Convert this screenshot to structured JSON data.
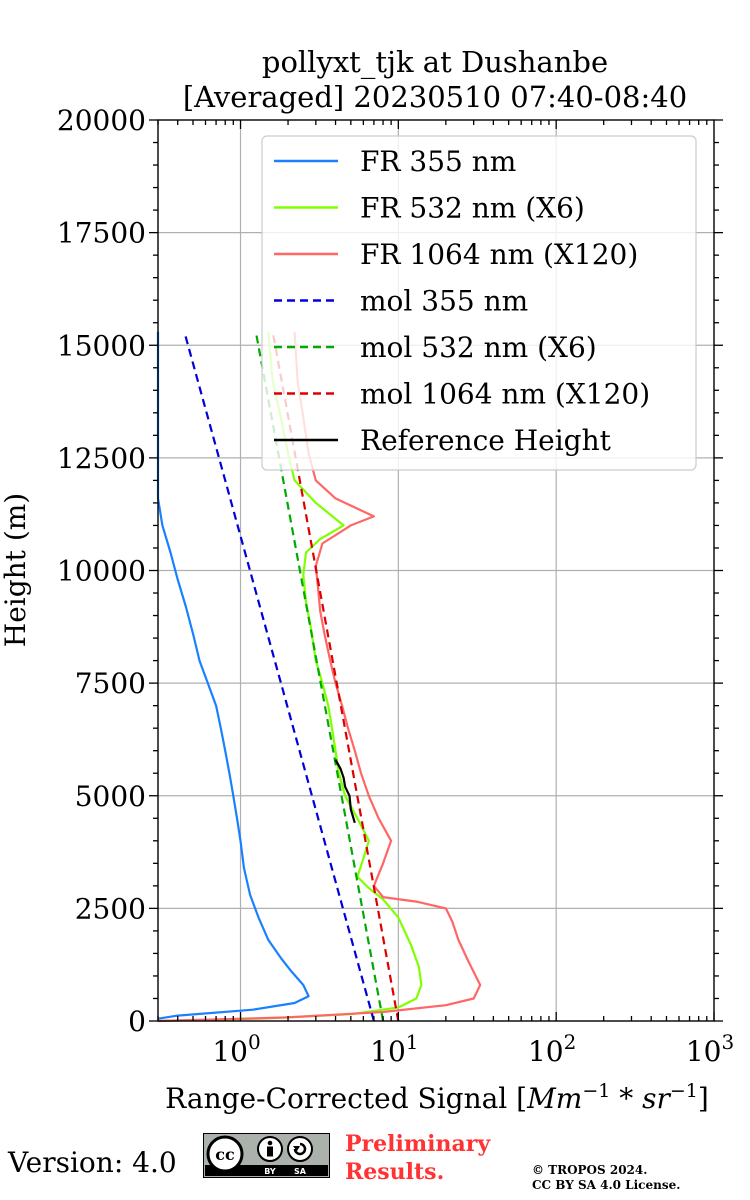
{
  "chart_data": {
    "type": "line",
    "title": [
      "pollyxt_tjk at Dushanbe",
      "[Averaged] 20230510 07:40-08:40"
    ],
    "xlabel_prefix": "Range-Corrected Signal [",
    "xlabel_math": "Mm",
    "xlabel_exp1": "−1",
    "xlabel_mid": " * sr",
    "xlabel_exp2": "−1",
    "xlabel_suffix": "]",
    "ylabel": "Height (m)",
    "xscale": "log",
    "xlim": [
      0.3,
      1000
    ],
    "ylim": [
      0,
      20000
    ],
    "grid": true,
    "legend_position": "top-right",
    "x_ticks": [
      1,
      10,
      100,
      1000
    ],
    "x_tick_labels": [
      [
        "10",
        "0"
      ],
      [
        "10",
        "1"
      ],
      [
        "10",
        "2"
      ],
      [
        "10",
        "3"
      ]
    ],
    "y_ticks": [
      0,
      2500,
      5000,
      7500,
      10000,
      12500,
      15000,
      17500,
      20000
    ],
    "y_tick_labels": [
      "0",
      "2500",
      "5000",
      "7500",
      "10000",
      "12500",
      "15000",
      "17500",
      "20000"
    ],
    "series": [
      {
        "name": "FR 355 nm",
        "color": "#1a80ff",
        "style": "solid",
        "points": [
          [
            0.3,
            50
          ],
          [
            0.4,
            120
          ],
          [
            1.2,
            250
          ],
          [
            2.2,
            400
          ],
          [
            2.7,
            550
          ],
          [
            2.5,
            800
          ],
          [
            2.1,
            1100
          ],
          [
            1.8,
            1400
          ],
          [
            1.5,
            1800
          ],
          [
            1.3,
            2300
          ],
          [
            1.15,
            2800
          ],
          [
            1.05,
            3400
          ],
          [
            1.0,
            4000
          ],
          [
            0.95,
            4500
          ],
          [
            0.9,
            5000
          ],
          [
            0.85,
            5500
          ],
          [
            0.8,
            6000
          ],
          [
            0.75,
            6500
          ],
          [
            0.7,
            7000
          ],
          [
            0.62,
            7500
          ],
          [
            0.55,
            8000
          ],
          [
            0.5,
            8600
          ],
          [
            0.45,
            9200
          ],
          [
            0.4,
            9800
          ],
          [
            0.36,
            10400
          ],
          [
            0.32,
            11000
          ],
          [
            0.3,
            11600
          ],
          [
            0.3,
            12500
          ],
          [
            0.3,
            13500
          ],
          [
            0.3,
            14500
          ],
          [
            0.3,
            15300
          ]
        ]
      },
      {
        "name": "FR 532 nm (X6)",
        "color": "#80ff00",
        "style": "solid",
        "points": [
          [
            0.3,
            0
          ],
          [
            1.5,
            60
          ],
          [
            5,
            150
          ],
          [
            10,
            300
          ],
          [
            13,
            500
          ],
          [
            14,
            800
          ],
          [
            13.5,
            1200
          ],
          [
            12,
            1700
          ],
          [
            10,
            2300
          ],
          [
            8,
            2700
          ],
          [
            6.5,
            2950
          ],
          [
            5.5,
            3200
          ],
          [
            6,
            3600
          ],
          [
            6.5,
            4000
          ],
          [
            5.5,
            4500
          ],
          [
            4.6,
            5000
          ],
          [
            4.2,
            5500
          ],
          [
            4.0,
            6000
          ],
          [
            3.8,
            6500
          ],
          [
            3.6,
            7000
          ],
          [
            3.3,
            7500
          ],
          [
            3.0,
            8000
          ],
          [
            2.8,
            8700
          ],
          [
            2.6,
            9300
          ],
          [
            2.5,
            9900
          ],
          [
            2.6,
            10400
          ],
          [
            3.2,
            10700
          ],
          [
            4.5,
            11000
          ],
          [
            3.0,
            11500
          ],
          [
            2.2,
            12000
          ],
          [
            2.0,
            12600
          ],
          [
            1.8,
            13400
          ],
          [
            1.6,
            14200
          ],
          [
            1.5,
            15300
          ]
        ]
      },
      {
        "name": "FR 1064 nm (X120)",
        "color": "#ff6666",
        "style": "solid",
        "points": [
          [
            0.3,
            0
          ],
          [
            2,
            80
          ],
          [
            8,
            200
          ],
          [
            20,
            350
          ],
          [
            30,
            500
          ],
          [
            33,
            800
          ],
          [
            28,
            1300
          ],
          [
            24,
            1800
          ],
          [
            22,
            2200
          ],
          [
            20,
            2500
          ],
          [
            13,
            2650
          ],
          [
            8,
            2750
          ],
          [
            7,
            3000
          ],
          [
            8,
            3500
          ],
          [
            9,
            4000
          ],
          [
            7.5,
            4500
          ],
          [
            6.5,
            5000
          ],
          [
            5.8,
            5500
          ],
          [
            5.3,
            6000
          ],
          [
            4.8,
            6500
          ],
          [
            4.4,
            7000
          ],
          [
            4.0,
            7500
          ],
          [
            3.7,
            8000
          ],
          [
            3.4,
            8600
          ],
          [
            3.2,
            9100
          ],
          [
            3.1,
            9600
          ],
          [
            3.0,
            10100
          ],
          [
            3.3,
            10600
          ],
          [
            5,
            11000
          ],
          [
            7,
            11200
          ],
          [
            4,
            11600
          ],
          [
            3,
            12000
          ],
          [
            2.7,
            12600
          ],
          [
            2.5,
            13400
          ],
          [
            2.3,
            14200
          ],
          [
            2.2,
            15300
          ]
        ]
      },
      {
        "name": "mol 355 nm",
        "color": "#0000dd",
        "style": "dashed",
        "points": [
          [
            7.0,
            0
          ],
          [
            0.44,
            15300
          ]
        ]
      },
      {
        "name": "mol 532 nm (X6)",
        "color": "#00aa00",
        "style": "dashed",
        "points": [
          [
            8.0,
            0
          ],
          [
            1.25,
            15300
          ]
        ]
      },
      {
        "name": "mol 1064 nm (X120)",
        "color": "#dd0000",
        "style": "dashed",
        "points": [
          [
            10.0,
            0
          ],
          [
            1.6,
            15300
          ]
        ]
      },
      {
        "name": "Reference Height",
        "color": "#000000",
        "style": "solid",
        "points": [
          [
            5.3,
            4400
          ],
          [
            5.0,
            4700
          ],
          [
            4.9,
            5000
          ],
          [
            4.6,
            5200
          ],
          [
            4.5,
            5400
          ],
          [
            4.3,
            5600
          ],
          [
            4.0,
            5800
          ]
        ]
      }
    ]
  },
  "footer": {
    "version": "Version: 4.0",
    "license_badge": [
      "cc",
      "BY",
      "SA"
    ],
    "preliminary": [
      "Preliminary",
      "Results."
    ],
    "copyright": [
      "© TROPOS 2024.",
      "CC BY SA 4.0 License."
    ]
  }
}
